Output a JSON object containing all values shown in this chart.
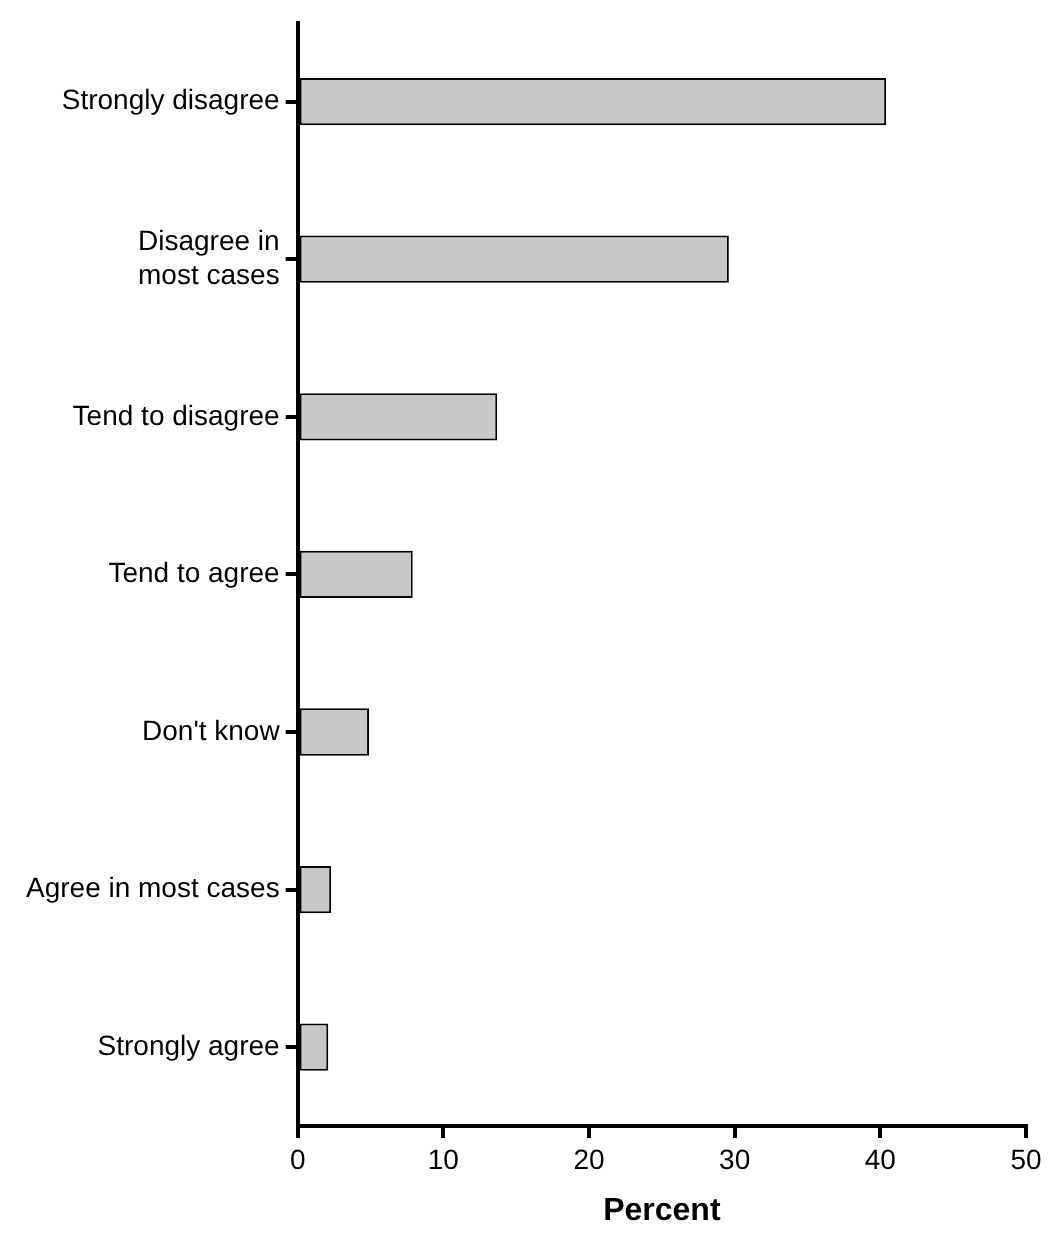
{
  "chart_data": {
    "type": "bar",
    "orientation": "horizontal",
    "xlabel": "Percent",
    "categories": [
      "Strongly disagree",
      "Disagree in most cases",
      "Tend to disagree",
      "Tend to agree",
      "Don't know",
      "Agree in most cases",
      "Strongly agree"
    ],
    "values": [
      40.4,
      29.6,
      13.7,
      7.9,
      4.9,
      2.3,
      2.1
    ],
    "color": "#c8c8c8",
    "xlim": [
      0,
      50
    ],
    "xticks": [
      0,
      10,
      20,
      30,
      40,
      50
    ],
    "grid": false,
    "legend": false
  }
}
